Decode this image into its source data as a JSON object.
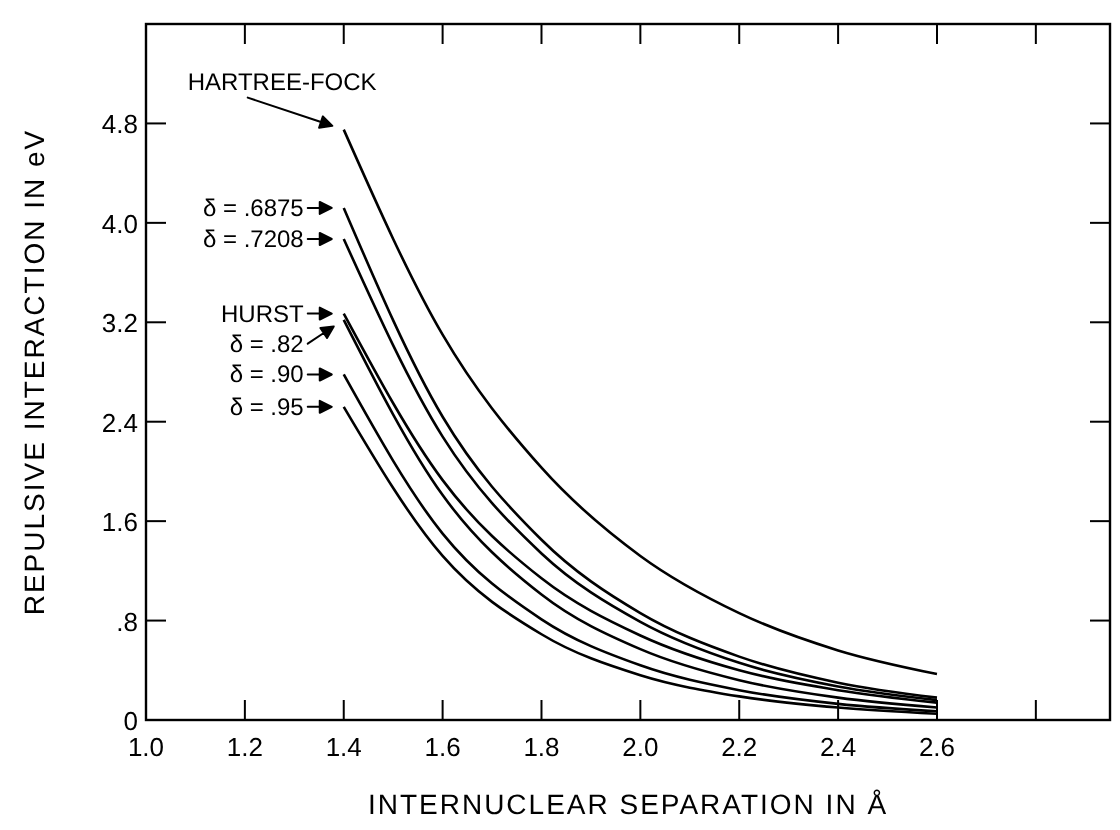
{
  "chart_data": {
    "type": "line",
    "xlabel": "INTERNUCLEAR SEPARATION IN Å",
    "ylabel": "REPULSIVE INTERACTION IN eV",
    "x": [
      1.4,
      1.6,
      1.8,
      2.0,
      2.2,
      2.4,
      2.6
    ],
    "series": [
      {
        "name": "HARTREE-FOCK",
        "color": "#000000",
        "values": [
          4.75,
          3.1,
          2.03,
          1.32,
          0.86,
          0.56,
          0.37
        ]
      },
      {
        "name": "δ = .6875",
        "color": "#000000",
        "values": [
          4.12,
          2.44,
          1.45,
          0.86,
          0.51,
          0.3,
          0.18
        ]
      },
      {
        "name": "δ = .7208",
        "color": "#000000",
        "values": [
          3.87,
          2.28,
          1.34,
          0.79,
          0.46,
          0.27,
          0.16
        ]
      },
      {
        "name": "HURST",
        "color": "#000000",
        "values": [
          3.27,
          1.93,
          1.14,
          0.68,
          0.4,
          0.24,
          0.14
        ]
      },
      {
        "name": "δ = .82",
        "color": "#000000",
        "values": [
          3.22,
          1.81,
          1.01,
          0.57,
          0.32,
          0.18,
          0.1
        ]
      },
      {
        "name": "δ = .90",
        "color": "#000000",
        "values": [
          2.78,
          1.5,
          0.81,
          0.44,
          0.24,
          0.13,
          0.07
        ]
      },
      {
        "name": "δ = .95",
        "color": "#000000",
        "values": [
          2.52,
          1.32,
          0.69,
          0.36,
          0.19,
          0.1,
          0.05
        ]
      }
    ],
    "xlim": [
      1.0,
      2.95
    ],
    "ylim": [
      0,
      5.6
    ],
    "xticks": [
      {
        "value": 1.0,
        "label": "1.0"
      },
      1.2,
      1.4,
      1.6,
      1.8,
      {
        "value": 2.0,
        "label": "2.0"
      },
      2.2,
      2.4,
      2.6,
      {
        "value": 2.8,
        "label": null
      }
    ],
    "yticks": [
      0,
      {
        "value": 0.8,
        "label": ".8"
      },
      1.6,
      2.4,
      3.2,
      {
        "value": 4.0,
        "label": "4.0"
      },
      4.8
    ],
    "grid": false,
    "legend": "left",
    "marker": "none",
    "line_style": "solid"
  }
}
